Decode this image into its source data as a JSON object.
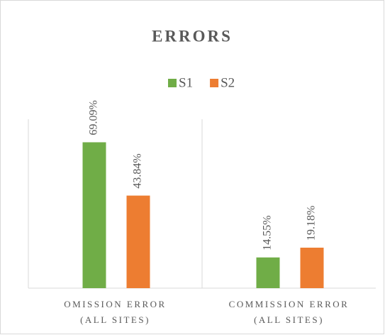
{
  "chart_data": {
    "type": "bar",
    "title": "ERRORS",
    "categories": [
      "OMISSION ERROR (ALL SITES)",
      "COMMISSION ERROR (ALL SITES)"
    ],
    "series": [
      {
        "name": "S1",
        "color": "#70ad47",
        "values": [
          69.09,
          14.55
        ],
        "value_labels": [
          "69.09%",
          "14.55%"
        ]
      },
      {
        "name": "S2",
        "color": "#ed7d31",
        "values": [
          43.84,
          19.18
        ],
        "value_labels": [
          "43.84%",
          "19.18%"
        ]
      }
    ],
    "ylim": [
      0,
      80
    ],
    "legend": "top"
  }
}
